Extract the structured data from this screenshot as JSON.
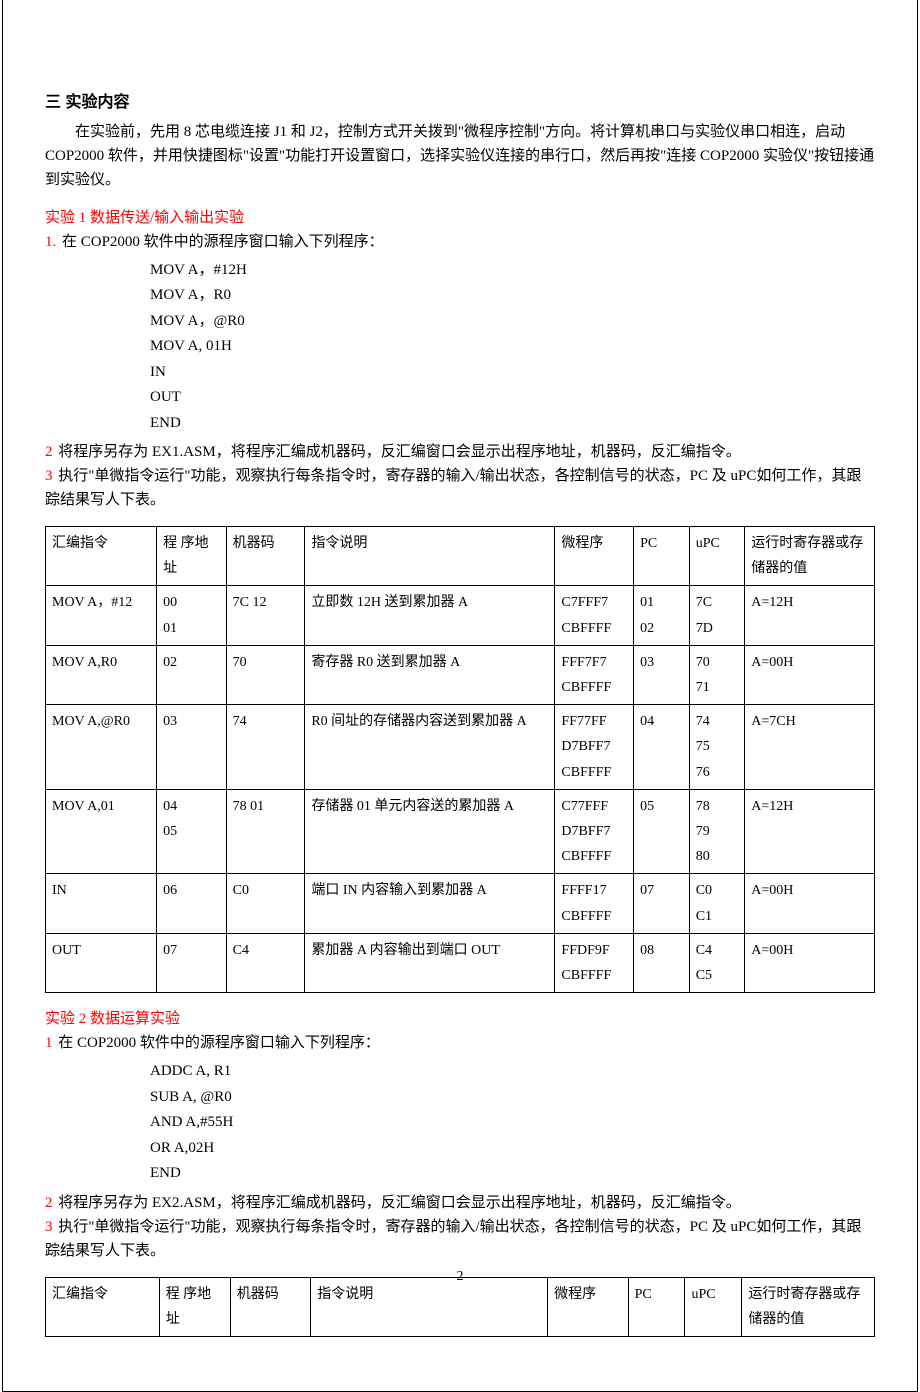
{
  "section_title": "三 实验内容",
  "intro": "在实验前，先用 8 芯电缆连接 J1 和 J2，控制方式开关拨到\"微程序控制\"方向。将计算机串口与实验仪串口相连，启动 COP2000 软件，并用快捷图标\"设置\"功能打开设置窗口，选择实验仪连接的串行口，然后再按\"连接 COP2000 实验仪\"按钮接通到实验仪。",
  "exp1": {
    "title": "实验 1 数据传送/输入输出实验",
    "step1_n": "1.",
    "step1": "在 COP2000 软件中的源程序窗口输入下列程序：",
    "code": [
      "MOV A，#12H",
      "MOV A，R0",
      "MOV A，@R0",
      "MOV A, 01H",
      "IN",
      "OUT",
      "END"
    ],
    "step2_n": "2",
    "step2": "将程序另存为 EX1.ASM，将程序汇编成机器码，反汇编窗口会显示出程序地址，机器码，反汇编指令。",
    "step3_n": "3",
    "step3": "执行\"单微指令运行\"功能，观察执行每条指令时，寄存器的输入/输出状态，各控制信号的状态，PC 及 uPC如何工作，其跟踪结果写人下表。"
  },
  "table1": {
    "headers": [
      "汇编指令",
      "程 序地址",
      "机器码",
      "指令说明",
      "微程序",
      "PC",
      "uPC",
      "运行时寄存器或存储器的值"
    ],
    "rows": [
      {
        "instr": "MOV A，#12",
        "addr": "00\n01",
        "mcode": "7C 12",
        "desc": "立即数 12H 送到累加器 A",
        "uprog": "C7FFF7\nCBFFFF",
        "pc": "01\n02",
        "upc": "7C\n7D",
        "reg": "A=12H"
      },
      {
        "instr": "MOV A,R0",
        "addr": "02",
        "mcode": "70",
        "desc": "寄存器 R0 送到累加器 A",
        "uprog": "FFF7F7\nCBFFFF",
        "pc": "03",
        "upc": "70\n71",
        "reg": "A=00H"
      },
      {
        "instr": "MOV A,@R0",
        "addr": "03",
        "mcode": "74",
        "desc": "R0 间址的存储器内容送到累加器 A",
        "uprog": "FF77FF\nD7BFF7\nCBFFFF",
        "pc": "04",
        "upc": "74\n75\n76",
        "reg": "A=7CH"
      },
      {
        "instr": "MOV A,01",
        "addr": "04\n05",
        "mcode": "78 01",
        "desc": "存储器 01 单元内容送的累加器 A",
        "uprog": "C77FFF\nD7BFF7\nCBFFFF",
        "pc": "05",
        "upc": "78\n79\n80",
        "reg": "A=12H"
      },
      {
        "instr": "IN",
        "addr": "06",
        "mcode": "C0",
        "desc": "端口 IN 内容输入到累加器 A",
        "uprog": "FFFF17\nCBFFFF",
        "pc": "07",
        "upc": "C0\nC1",
        "reg": "A=00H"
      },
      {
        "instr": "OUT",
        "addr": "07",
        "mcode": "C4",
        "desc": "累加器 A 内容输出到端口 OUT",
        "uprog": "FFDF9F\nCBFFFF",
        "pc": "08",
        "upc": "C4\nC5",
        "reg": "A=00H"
      }
    ]
  },
  "exp2": {
    "title": "实验 2 数据运算实验",
    "step1_n": "1",
    "step1": "在 COP2000 软件中的源程序窗口输入下列程序：",
    "code": [
      "ADDC    A, R1",
      "SUB      A, @R0",
      "AND      A,#55H",
      "OR        A,02H",
      "END"
    ],
    "step2_n": "2",
    "step2": "将程序另存为 EX2.ASM，将程序汇编成机器码，反汇编窗口会显示出程序地址，机器码，反汇编指令。",
    "step3_n": "3",
    "step3": "执行\"单微指令运行\"功能，观察执行每条指令时，寄存器的输入/输出状态，各控制信号的状态，PC 及 uPC如何工作，其跟踪结果写人下表。"
  },
  "table2": {
    "headers": [
      "汇编指令",
      "程 序地址",
      "机器码",
      "指令说明",
      "微程序",
      "PC",
      "uPC",
      "运行时寄存器或存储器的值"
    ]
  },
  "page_number": "2"
}
